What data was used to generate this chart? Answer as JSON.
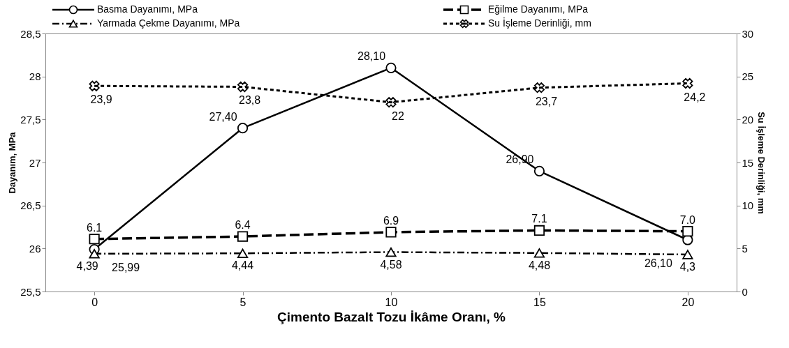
{
  "chart_data": {
    "type": "line",
    "xlabel": "Çimento Bazalt Tozu İkâme Oranı, %",
    "ylabel": "Dayanım, MPa",
    "y2label": "Su İşleme Derinliği, mm",
    "categories": [
      "0",
      "5",
      "10",
      "15",
      "20"
    ],
    "ylim": [
      25.5,
      28.5
    ],
    "yticks": [
      {
        "value": 25.5,
        "label": "25,5"
      },
      26,
      {
        "value": 26.5,
        "label": "26,5"
      },
      27,
      {
        "value": 27.5,
        "label": "27,5"
      },
      28,
      {
        "value": 28.5,
        "label": "28,5"
      }
    ],
    "y2lim": [
      0,
      30
    ],
    "y2ticks": [
      0,
      5,
      10,
      15,
      20,
      25,
      30
    ],
    "grid": false,
    "legend": "top",
    "series": [
      {
        "name": "Basma Dayanımı, MPa",
        "color": "#000000",
        "values": [
          25.99,
          27.4,
          28.1,
          26.9,
          26.1
        ],
        "value_labels": [
          "25,99",
          "27,40",
          "28,10",
          "26,90",
          "26,10"
        ],
        "marker": "circle",
        "line_style": "solid"
      },
      {
        "name": "Eğilme Dayanımı, MPa",
        "color": "#000000",
        "values": [
          6.1,
          6.4,
          6.9,
          7.1,
          7.0
        ],
        "value_labels": [
          "6.1",
          "6.4",
          "6.9",
          "7.1",
          "7.0"
        ],
        "axis": "y2",
        "marker": "square",
        "line_style": "dashed"
      },
      {
        "name": "Yarmada Çekme Dayanımı, MPa",
        "color": "#000000",
        "values": [
          4.39,
          4.44,
          4.58,
          4.48,
          4.3
        ],
        "value_labels": [
          "4,39",
          "4,44",
          "4,58",
          "4,48",
          "4,3"
        ],
        "axis": "y2",
        "marker": "triangle",
        "line_style": "dashdot"
      },
      {
        "name": "Su İşleme Derinliği, mm",
        "color": "#000000",
        "values": [
          23.9,
          23.8,
          22,
          23.7,
          24.2
        ],
        "value_labels": [
          "23,9",
          "23,8",
          "22",
          "23,7",
          "24,2"
        ],
        "axis": "y2",
        "marker": "cross",
        "line_style": "dotted"
      }
    ]
  }
}
